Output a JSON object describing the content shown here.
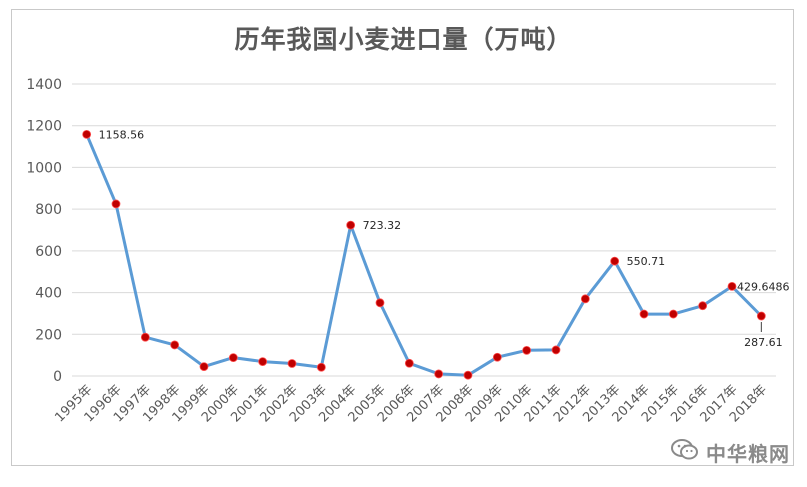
{
  "title": "历年我国小麦进口量（万吨）",
  "watermark": {
    "text": "中华粮网",
    "icon": "wechat-icon"
  },
  "chart_data": {
    "type": "line",
    "title": "历年我国小麦进口量（万吨）",
    "xlabel": "",
    "ylabel": "",
    "ylim": [
      0,
      1400
    ],
    "yticks": [
      0,
      200,
      400,
      600,
      800,
      1000,
      1200,
      1400
    ],
    "grid": true,
    "legend": "none",
    "categories": [
      "1995年",
      "1996年",
      "1997年",
      "1998年",
      "1999年",
      "2000年",
      "2001年",
      "2002年",
      "2003年",
      "2004年",
      "2005年",
      "2006年",
      "2007年",
      "2008年",
      "2009年",
      "2010年",
      "2011年",
      "2012年",
      "2013年",
      "2014年",
      "2015年",
      "2016年",
      "2017年",
      "2018年"
    ],
    "series": [
      {
        "values": [
          1158.56,
          825,
          186,
          149,
          45,
          88,
          69,
          60,
          42,
          723.32,
          351,
          61,
          10,
          4,
          90,
          123,
          125,
          370,
          550.71,
          297,
          297,
          337,
          429.6486,
          287.61
        ],
        "color": "#5b9bd5",
        "marker_color": "#c00000"
      }
    ],
    "data_labels": [
      {
        "index": 0,
        "text": "1158.56"
      },
      {
        "index": 9,
        "text": "723.32"
      },
      {
        "index": 18,
        "text": "550.71"
      },
      {
        "index": 22,
        "text": "429.6486"
      },
      {
        "index": 23,
        "text": "287.61"
      }
    ]
  }
}
